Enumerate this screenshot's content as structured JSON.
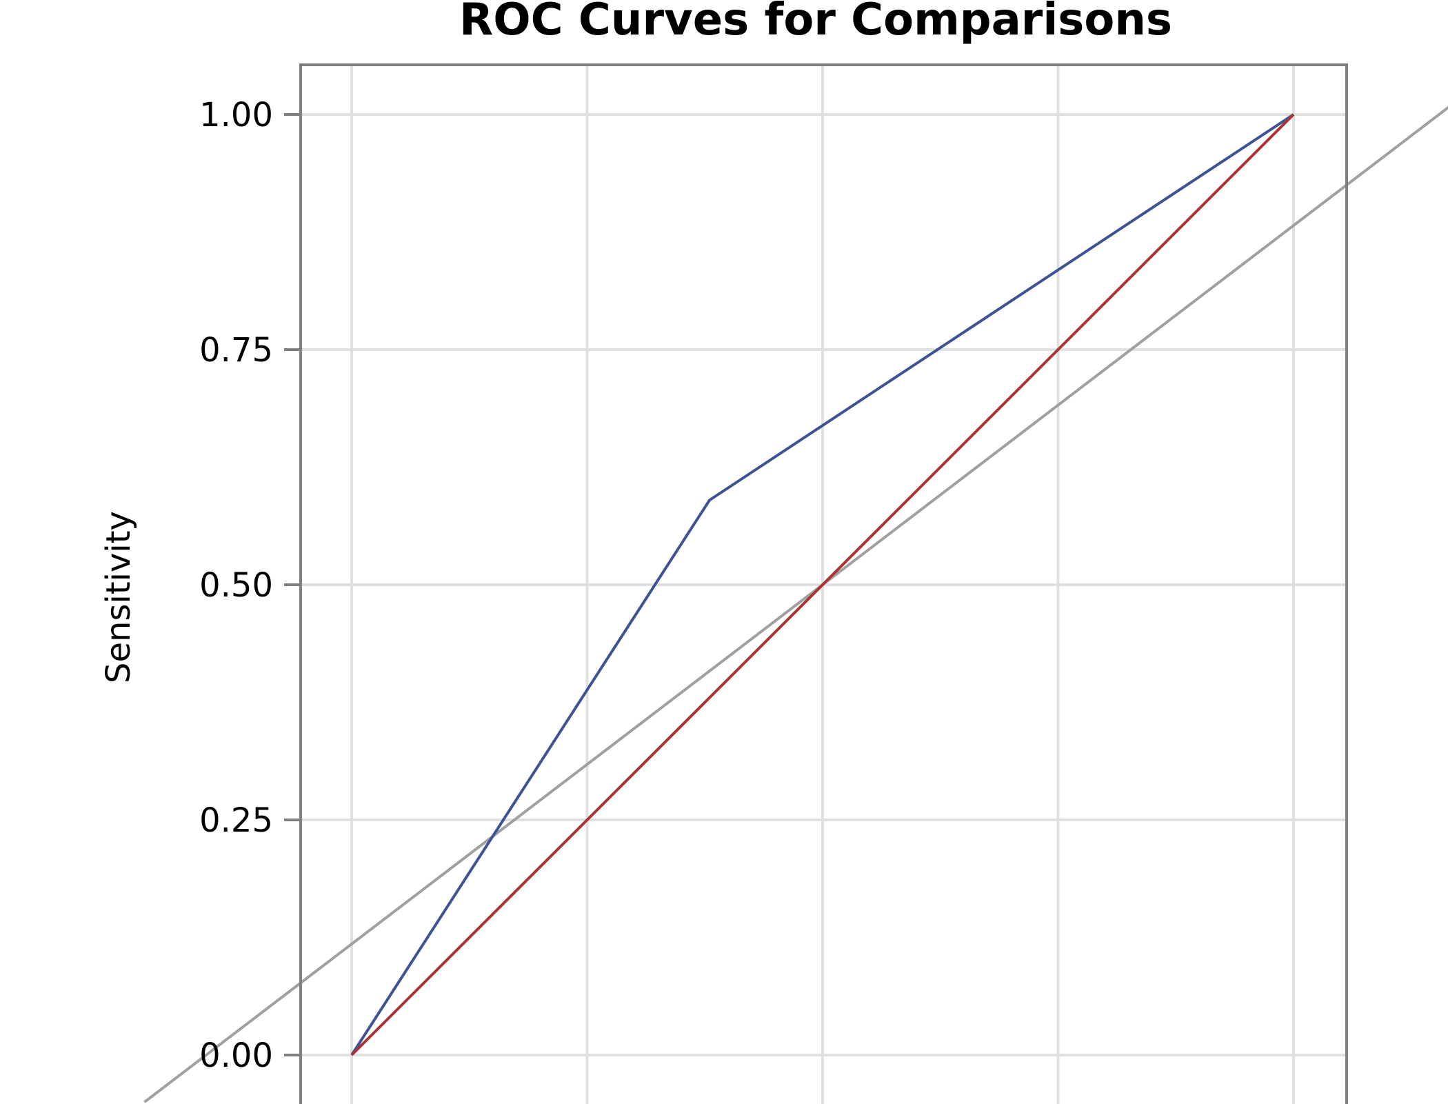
{
  "chart_data": {
    "type": "line",
    "title": "ROC Curves for Comparisons",
    "xlabel": "",
    "ylabel": "Sensitivity",
    "xlim": [
      -0.22,
      1.22
    ],
    "ylim": [
      -0.05,
      1.05
    ],
    "yticks": [
      {
        "value": 0.0,
        "label": "0.00"
      },
      {
        "value": 0.25,
        "label": "0.25"
      },
      {
        "value": 0.5,
        "label": "0.50"
      },
      {
        "value": 0.75,
        "label": "0.75"
      },
      {
        "value": 1.0,
        "label": "1.00"
      }
    ],
    "x_gridlines": [
      0.0,
      0.25,
      0.5,
      0.75,
      1.0
    ],
    "grid": true,
    "series": [
      {
        "color": "#3e5394",
        "x": [
          0.0,
          0.38,
          1.0
        ],
        "y": [
          0.0,
          0.59,
          1.0
        ]
      },
      {
        "color": "#a83434",
        "x": [
          0.0,
          1.0
        ],
        "y": [
          0.0,
          1.0
        ]
      }
    ],
    "reference_line": {
      "color": "#a0a0a0",
      "x": [
        -0.22,
        1.22
      ],
      "y": [
        -0.05,
        1.05
      ]
    }
  }
}
